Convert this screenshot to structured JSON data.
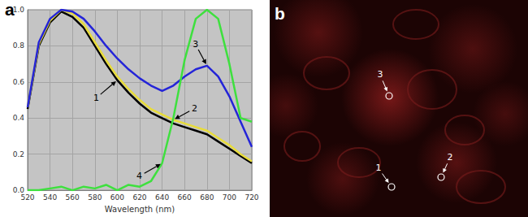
{
  "chart_data": {
    "type": "line",
    "title": "a",
    "x_label": "Wavelength (nm)",
    "x": [
      520,
      530,
      540,
      550,
      560,
      570,
      580,
      590,
      600,
      610,
      620,
      630,
      640,
      650,
      660,
      670,
      680,
      690,
      700,
      710,
      720
    ],
    "xlim": [
      520,
      720
    ],
    "xticks": [
      520,
      540,
      560,
      580,
      600,
      620,
      640,
      660,
      680,
      700,
      720
    ],
    "ylim": [
      0,
      1
    ],
    "yticks": [
      {
        "value": 0,
        "label": "0.0"
      },
      {
        "value": 0.2,
        "label": "0.2"
      },
      {
        "value": 0.4,
        "label": "0.4"
      },
      {
        "value": 0.6,
        "label": "0.6"
      },
      {
        "value": 0.8,
        "label": "0.8"
      },
      {
        "value": 1,
        "label": "1.0"
      }
    ],
    "grid": true,
    "series": [
      {
        "name": "1",
        "color": "#000000",
        "values": [
          0.45,
          0.8,
          0.93,
          0.99,
          0.96,
          0.9,
          0.8,
          0.7,
          0.61,
          0.54,
          0.48,
          0.43,
          0.4,
          0.37,
          0.35,
          0.33,
          0.31,
          0.27,
          0.23,
          0.19,
          0.15
        ]
      },
      {
        "name": "2",
        "color": "#e8dc3a",
        "values": [
          0.46,
          0.81,
          0.94,
          1.0,
          0.98,
          0.92,
          0.82,
          0.72,
          0.63,
          0.56,
          0.5,
          0.45,
          0.42,
          0.39,
          0.37,
          0.35,
          0.33,
          0.29,
          0.25,
          0.2,
          0.16
        ]
      },
      {
        "name": "3",
        "color": "#2424d8",
        "values": [
          0.46,
          0.82,
          0.95,
          1.0,
          0.99,
          0.95,
          0.88,
          0.8,
          0.73,
          0.67,
          0.62,
          0.58,
          0.55,
          0.58,
          0.63,
          0.67,
          0.69,
          0.63,
          0.52,
          0.38,
          0.24
        ]
      },
      {
        "name": "4",
        "color": "#3ee03e",
        "values": [
          0.0,
          0.0,
          0.01,
          0.02,
          0.0,
          0.02,
          0.01,
          0.03,
          0.0,
          0.03,
          0.02,
          0.05,
          0.15,
          0.4,
          0.72,
          0.95,
          1.0,
          0.95,
          0.7,
          0.4,
          0.38
        ]
      }
    ]
  },
  "image": {
    "label": "b",
    "markers": [
      {
        "label": "1"
      },
      {
        "label": "2"
      },
      {
        "label": "3"
      }
    ]
  }
}
